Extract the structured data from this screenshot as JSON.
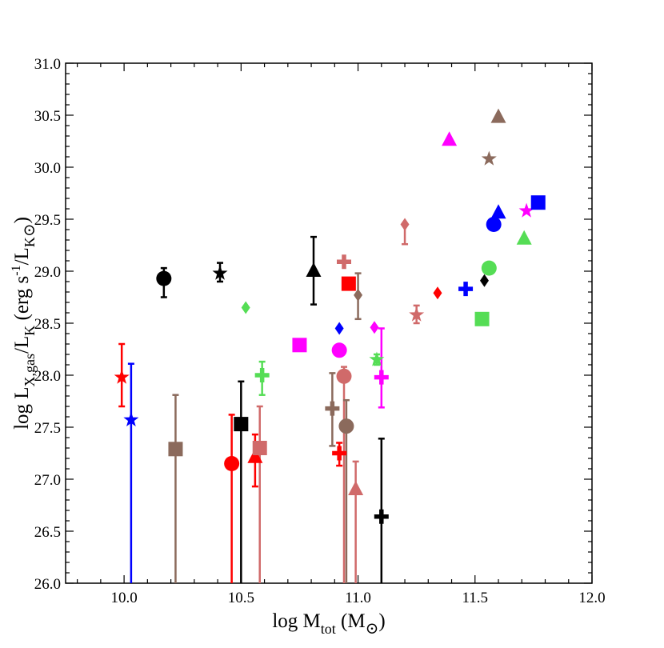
{
  "chart_data": {
    "type": "scatter",
    "title": "",
    "xlabel": "log M_tot (M_⊙)",
    "ylabel": "log L_X,gas/L_K (erg s^-1/L_K⊙)",
    "x_label_parts": {
      "main": "log M",
      "sub": "tot",
      "tail": " (M",
      "sun": "⊙",
      "close": ")"
    },
    "y_label_parts": {
      "main": "log L",
      "sub1": "X,gas",
      "mid": "/L",
      "sub2": "K",
      "mid2": " (erg s",
      "sup": "-1",
      "mid3": "/L",
      "sub3": "K",
      "sun": "⊙",
      "close": ")"
    },
    "xlim": [
      9.75,
      12.0
    ],
    "ylim": [
      26.0,
      31.0
    ],
    "x_ticks": [
      10.0,
      10.5,
      11.0,
      11.5,
      12.0
    ],
    "x_tick_labels": [
      "10.0",
      "10.5",
      "11.0",
      "11.5",
      "12.0"
    ],
    "y_ticks": [
      26.0,
      26.5,
      27.0,
      27.5,
      28.0,
      28.5,
      29.0,
      29.5,
      30.0,
      30.5,
      31.0
    ],
    "y_tick_labels": [
      "26.0",
      "26.5",
      "27.0",
      "27.5",
      "28.0",
      "28.5",
      "29.0",
      "29.5",
      "30.0",
      "30.5",
      "31.0"
    ],
    "grid": false,
    "legend": "none",
    "points": [
      {
        "x": 9.99,
        "y": 27.98,
        "err_lo": 27.7,
        "err_hi": 28.3,
        "marker": "star",
        "color": "#ff0000"
      },
      {
        "x": 10.03,
        "y": 27.57,
        "err_lo": 26.0,
        "err_hi": 28.11,
        "marker": "star",
        "color": "#0000ff"
      },
      {
        "x": 10.17,
        "y": 28.93,
        "err_lo": 28.75,
        "err_hi": 29.03,
        "marker": "circle",
        "color": "#000000"
      },
      {
        "x": 10.22,
        "y": 27.29,
        "err_lo": 26.0,
        "err_hi": 27.81,
        "marker": "square",
        "color": "#8b6a5c"
      },
      {
        "x": 10.41,
        "y": 28.98,
        "err_lo": 28.9,
        "err_hi": 29.08,
        "marker": "star",
        "color": "#000000"
      },
      {
        "x": 10.46,
        "y": 27.15,
        "err_lo": 26.0,
        "err_hi": 27.62,
        "marker": "circle",
        "color": "#ff0000"
      },
      {
        "x": 10.5,
        "y": 27.53,
        "err_lo": 26.0,
        "err_hi": 27.94,
        "marker": "square",
        "color": "#000000"
      },
      {
        "x": 10.52,
        "y": 28.65,
        "err_lo": null,
        "err_hi": null,
        "marker": "diamond",
        "color": "#55dd55"
      },
      {
        "x": 10.56,
        "y": 27.21,
        "err_lo": 26.93,
        "err_hi": 27.43,
        "marker": "triangle",
        "color": "#ff0000"
      },
      {
        "x": 10.58,
        "y": 27.3,
        "err_lo": 26.0,
        "err_hi": 27.7,
        "marker": "square",
        "color": "#d06a6a"
      },
      {
        "x": 10.59,
        "y": 28.0,
        "err_lo": 27.81,
        "err_hi": 28.13,
        "marker": "plus",
        "color": "#55dd55"
      },
      {
        "x": 10.75,
        "y": 28.29,
        "err_lo": 28.24,
        "err_hi": null,
        "marker": "square",
        "color": "#ff00ff"
      },
      {
        "x": 10.81,
        "y": 29.0,
        "err_lo": 28.68,
        "err_hi": 29.33,
        "marker": "triangle",
        "color": "#000000"
      },
      {
        "x": 10.89,
        "y": 27.68,
        "err_lo": 27.32,
        "err_hi": 28.02,
        "marker": "plus",
        "color": "#8b6a5c"
      },
      {
        "x": 10.92,
        "y": 28.45,
        "err_lo": null,
        "err_hi": null,
        "marker": "diamond",
        "color": "#0000ff"
      },
      {
        "x": 10.92,
        "y": 28.24,
        "err_lo": null,
        "err_hi": null,
        "marker": "circle",
        "color": "#ff00ff"
      },
      {
        "x": 10.92,
        "y": 27.25,
        "err_lo": 27.13,
        "err_hi": 27.35,
        "marker": "plus",
        "color": "#ff0000"
      },
      {
        "x": 10.94,
        "y": 27.99,
        "err_lo": 26.0,
        "err_hi": 28.08,
        "marker": "circle",
        "color": "#d06a6a"
      },
      {
        "x": 10.95,
        "y": 27.51,
        "err_lo": 26.0,
        "err_hi": 27.76,
        "marker": "circle",
        "color": "#8b6a5c"
      },
      {
        "x": 10.94,
        "y": 29.09,
        "err_lo": null,
        "err_hi": null,
        "marker": "plus",
        "color": "#d06a6a"
      },
      {
        "x": 10.96,
        "y": 28.88,
        "err_lo": 28.84,
        "err_hi": 28.91,
        "marker": "square",
        "color": "#ff0000"
      },
      {
        "x": 10.99,
        "y": 26.9,
        "err_lo": 26.0,
        "err_hi": 27.17,
        "marker": "triangle",
        "color": "#d06a6a"
      },
      {
        "x": 11.0,
        "y": 28.77,
        "err_lo": 28.54,
        "err_hi": 28.98,
        "marker": "diamond",
        "color": "#8b6a5c"
      },
      {
        "x": 11.07,
        "y": 28.46,
        "err_lo": null,
        "err_hi": null,
        "marker": "diamond",
        "color": "#ff00ff"
      },
      {
        "x": 11.08,
        "y": 28.15,
        "err_lo": 28.1,
        "err_hi": 28.2,
        "marker": "star",
        "color": "#55dd55"
      },
      {
        "x": 11.1,
        "y": 27.98,
        "err_lo": 27.69,
        "err_hi": 28.45,
        "marker": "plus",
        "color": "#ff00ff"
      },
      {
        "x": 11.1,
        "y": 26.64,
        "err_lo": 26.0,
        "err_hi": 27.39,
        "marker": "plus",
        "color": "#000000"
      },
      {
        "x": 11.2,
        "y": 29.45,
        "err_lo": 29.26,
        "err_hi": null,
        "marker": "diamond",
        "color": "#d06a6a"
      },
      {
        "x": 11.25,
        "y": 28.58,
        "err_lo": 28.5,
        "err_hi": 28.67,
        "marker": "star",
        "color": "#d06a6a"
      },
      {
        "x": 11.34,
        "y": 28.79,
        "err_lo": null,
        "err_hi": null,
        "marker": "diamond",
        "color": "#ff0000"
      },
      {
        "x": 11.39,
        "y": 30.26,
        "err_lo": null,
        "err_hi": null,
        "marker": "triangle",
        "color": "#ff00ff"
      },
      {
        "x": 11.46,
        "y": 28.83,
        "err_lo": null,
        "err_hi": null,
        "marker": "plus",
        "color": "#0000ff"
      },
      {
        "x": 11.53,
        "y": 28.54,
        "err_lo": null,
        "err_hi": null,
        "marker": "square",
        "color": "#55dd55"
      },
      {
        "x": 11.54,
        "y": 28.91,
        "err_lo": null,
        "err_hi": null,
        "marker": "diamond",
        "color": "#000000"
      },
      {
        "x": 11.56,
        "y": 29.03,
        "err_lo": null,
        "err_hi": null,
        "marker": "circle",
        "color": "#55dd55"
      },
      {
        "x": 11.56,
        "y": 30.08,
        "err_lo": null,
        "err_hi": null,
        "marker": "star",
        "color": "#8b6a5c"
      },
      {
        "x": 11.58,
        "y": 29.45,
        "err_lo": null,
        "err_hi": null,
        "marker": "circle",
        "color": "#0000ff"
      },
      {
        "x": 11.6,
        "y": 29.56,
        "err_lo": null,
        "err_hi": null,
        "marker": "triangle",
        "color": "#0000ff"
      },
      {
        "x": 11.6,
        "y": 30.48,
        "err_lo": null,
        "err_hi": null,
        "marker": "triangle",
        "color": "#8b6a5c"
      },
      {
        "x": 11.71,
        "y": 29.31,
        "err_lo": null,
        "err_hi": null,
        "marker": "triangle",
        "color": "#55dd55"
      },
      {
        "x": 11.72,
        "y": 29.58,
        "err_lo": null,
        "err_hi": null,
        "marker": "star",
        "color": "#ff00ff"
      },
      {
        "x": 11.77,
        "y": 29.66,
        "err_lo": null,
        "err_hi": null,
        "marker": "square",
        "color": "#0000ff"
      }
    ]
  }
}
